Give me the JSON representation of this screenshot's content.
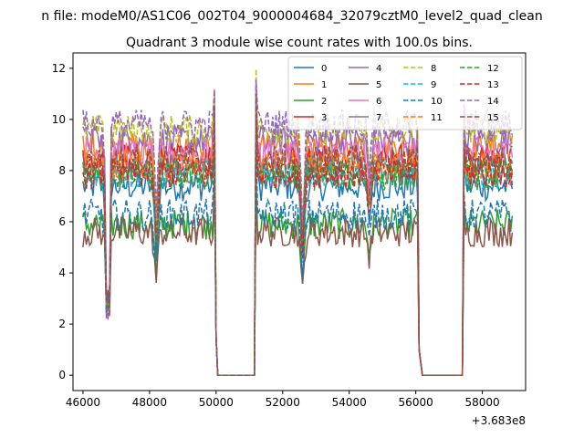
{
  "suptitle": "n file: modeM0/AS1C06_002T04_9000004684_32079cztM0_level2_quad_clean",
  "chart_data": {
    "type": "line",
    "title": "Quadrant 3 module wise count rates with 100.0s bins.",
    "xlabel": "",
    "ylabel": "",
    "x_offset_label": "+3.683e8",
    "xlim": [
      45700,
      59300
    ],
    "ylim": [
      -0.6,
      12.6
    ],
    "xticks": [
      46000,
      48000,
      50000,
      52000,
      54000,
      56000,
      58000
    ],
    "yticks": [
      0,
      2,
      4,
      6,
      8,
      10,
      12
    ],
    "grid": false,
    "legend_position": "top-right",
    "legend_columns": 4,
    "series": [
      {
        "name": "0",
        "color": "#1f77b4",
        "style": "solid",
        "base": 7.4
      },
      {
        "name": "1",
        "color": "#ff7f0e",
        "style": "solid",
        "base": 8.9
      },
      {
        "name": "2",
        "color": "#2ca02c",
        "style": "solid",
        "base": 5.9
      },
      {
        "name": "3",
        "color": "#d62728",
        "style": "solid",
        "base": 8.5
      },
      {
        "name": "4",
        "color": "#9467bd",
        "style": "solid",
        "base": 9.2
      },
      {
        "name": "5",
        "color": "#8c564b",
        "style": "solid",
        "base": 5.6
      },
      {
        "name": "6",
        "color": "#e377c2",
        "style": "solid",
        "base": 8.7
      },
      {
        "name": "7",
        "color": "#7f7f7f",
        "style": "solid",
        "base": 8.0
      },
      {
        "name": "8",
        "color": "#bcbd22",
        "style": "dashed",
        "base": 9.6
      },
      {
        "name": "9",
        "color": "#17becf",
        "style": "dashed",
        "base": 7.9
      },
      {
        "name": "10",
        "color": "#1f77b4",
        "style": "dashed",
        "base": 6.3
      },
      {
        "name": "11",
        "color": "#ff7f0e",
        "style": "dashed",
        "base": 8.2
      },
      {
        "name": "12",
        "color": "#2ca02c",
        "style": "dashed",
        "base": 7.8
      },
      {
        "name": "13",
        "color": "#d62728",
        "style": "dashed",
        "base": 7.9
      },
      {
        "name": "14",
        "color": "#9467bd",
        "style": "dashed",
        "base": 9.8
      },
      {
        "name": "15",
        "color": "#8c564b",
        "style": "dashed",
        "base": 8.4
      }
    ],
    "segments": [
      {
        "start": 46000,
        "end": 49950,
        "note": "dip near 46700 and 48200"
      },
      {
        "start": 49950,
        "end": 50050,
        "drop_to": 0
      },
      {
        "start": 50050,
        "end": 51150,
        "value": 0
      },
      {
        "start": 51150,
        "end": 56100,
        "note": "dip near 52600 and 54600"
      },
      {
        "start": 56100,
        "end": 56200,
        "drop_to": 0
      },
      {
        "start": 56200,
        "end": 57400,
        "value": 0
      },
      {
        "start": 57400,
        "end": 58900
      }
    ]
  }
}
